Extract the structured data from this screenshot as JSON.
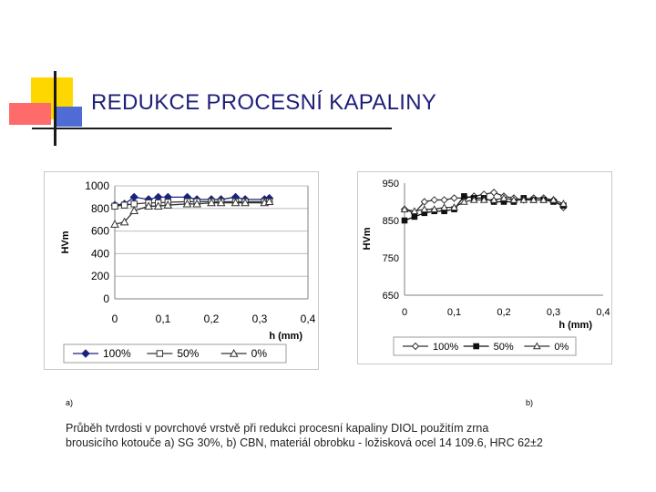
{
  "slide": {
    "title": "REDUKCE PROCESNÍ KAPALINY",
    "accent_colors": {
      "yellow": "#ffd700",
      "red": "#ff6a6a",
      "blue": "#4f6bd6",
      "title_color": "#1f1f7a"
    },
    "label_a": "a)",
    "label_b": "b)",
    "caption_line1": "Průběh tvrdosti v povrchové vrstvě při redukci procesní kapaliny DIOL použitím zrna",
    "caption_line2": "brousicího kotouče  a) SG 30%, b) CBN, materiál obrobku  - ložisková ocel 14 109.6, HRC 62±2"
  },
  "chart_data": [
    {
      "id": "a",
      "type": "line",
      "title": "",
      "xlabel": "h (mm)",
      "ylabel": "HVm",
      "xlim": [
        0,
        0.4
      ],
      "ylim": [
        0,
        1000
      ],
      "xticks": [
        0,
        0.1,
        0.2,
        0.3,
        0.4
      ],
      "xtick_labels": [
        "0",
        "0,1",
        "0,2",
        "0,3",
        "0,4"
      ],
      "yticks": [
        0,
        200,
        400,
        600,
        800,
        1000
      ],
      "ytick_labels": [
        "0",
        "200",
        "400",
        "600",
        "800",
        "1000"
      ],
      "grid": true,
      "legend_position": "bottom",
      "series": [
        {
          "name": "100%",
          "marker": "diamond-filled",
          "color": "#1a237e",
          "x": [
            0,
            0.02,
            0.04,
            0.07,
            0.09,
            0.11,
            0.15,
            0.17,
            0.2,
            0.22,
            0.25,
            0.27,
            0.31,
            0.32
          ],
          "y": [
            830,
            840,
            900,
            880,
            900,
            900,
            900,
            880,
            880,
            880,
            900,
            880,
            880,
            890
          ]
        },
        {
          "name": "50%",
          "marker": "square-open",
          "color": "#333333",
          "x": [
            0,
            0.02,
            0.04,
            0.07,
            0.09,
            0.11,
            0.15,
            0.17,
            0.2,
            0.22,
            0.25,
            0.27,
            0.31,
            0.32
          ],
          "y": [
            820,
            830,
            840,
            850,
            850,
            855,
            860,
            860,
            860,
            860,
            860,
            860,
            860,
            860
          ]
        },
        {
          "name": "0%",
          "marker": "triangle-open",
          "color": "#333333",
          "x": [
            0,
            0.02,
            0.04,
            0.07,
            0.09,
            0.11,
            0.15,
            0.17,
            0.2,
            0.22,
            0.25,
            0.27,
            0.31,
            0.32
          ],
          "y": [
            660,
            680,
            780,
            820,
            820,
            830,
            840,
            840,
            850,
            850,
            850,
            850,
            850,
            860
          ]
        }
      ]
    },
    {
      "id": "b",
      "type": "line",
      "title": "",
      "xlabel": "h (mm)",
      "ylabel": "HVm",
      "xlim": [
        0,
        0.4
      ],
      "ylim": [
        650,
        950
      ],
      "xticks": [
        0,
        0.1,
        0.2,
        0.3,
        0.4
      ],
      "xtick_labels": [
        "0",
        "0,1",
        "0,2",
        "0,3",
        "0,4"
      ],
      "yticks": [
        650,
        750,
        850,
        950
      ],
      "ytick_labels": [
        "650",
        "750",
        "850",
        "950"
      ],
      "grid": false,
      "legend_position": "bottom",
      "series": [
        {
          "name": "100%",
          "marker": "diamond-open",
          "color": "#333333",
          "x": [
            0,
            0.02,
            0.04,
            0.06,
            0.08,
            0.1,
            0.12,
            0.14,
            0.16,
            0.18,
            0.2,
            0.22,
            0.24,
            0.26,
            0.28,
            0.3,
            0.32
          ],
          "y": [
            880,
            870,
            900,
            905,
            905,
            910,
            910,
            915,
            920,
            925,
            915,
            910,
            905,
            910,
            910,
            905,
            885
          ]
        },
        {
          "name": "50%",
          "marker": "square-filled",
          "color": "#111111",
          "x": [
            0,
            0.02,
            0.04,
            0.06,
            0.08,
            0.1,
            0.12,
            0.14,
            0.16,
            0.18,
            0.2,
            0.22,
            0.24,
            0.26,
            0.28,
            0.3,
            0.32
          ],
          "y": [
            850,
            860,
            870,
            875,
            875,
            880,
            915,
            910,
            910,
            900,
            900,
            900,
            910,
            905,
            905,
            900,
            890
          ]
        },
        {
          "name": "0%",
          "marker": "triangle-open",
          "color": "#333333",
          "x": [
            0,
            0.02,
            0.04,
            0.06,
            0.08,
            0.1,
            0.12,
            0.14,
            0.16,
            0.18,
            0.2,
            0.22,
            0.24,
            0.26,
            0.28,
            0.3,
            0.32
          ],
          "y": [
            880,
            875,
            880,
            880,
            885,
            885,
            900,
            905,
            905,
            905,
            910,
            905,
            905,
            905,
            905,
            905,
            895
          ]
        }
      ]
    }
  ]
}
